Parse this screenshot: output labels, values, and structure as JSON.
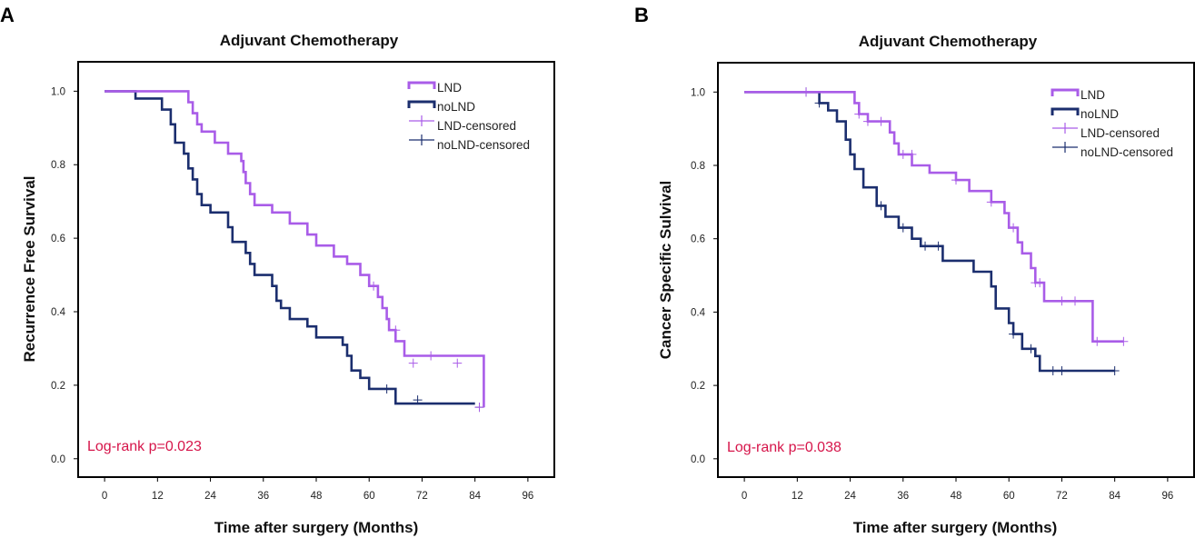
{
  "colors": {
    "LND": "#a95ce8",
    "noLND": "#1b2e6e",
    "annotation": "#d6154a"
  },
  "chart_data": [
    {
      "panel": "A",
      "type": "line",
      "subtype": "kaplan-meier",
      "title": "Adjuvant Chemotherapy",
      "xlabel": "Time after surgery (Months)",
      "ylabel": "Recurrence Free Survival",
      "xlim": [
        -6,
        102
      ],
      "ylim": [
        -0.05,
        1.08
      ],
      "xticks": [
        0,
        12,
        24,
        36,
        48,
        60,
        72,
        84,
        96
      ],
      "yticks": [
        0.0,
        0.2,
        0.4,
        0.6,
        0.8,
        1.0
      ],
      "ytick_labels": [
        "0.0",
        "0.2",
        "0.4",
        "0.6",
        "0.8",
        "1.0"
      ],
      "legend_position": "top-right",
      "legend": [
        "LND",
        "noLND",
        "LND-censored",
        "noLND-censored"
      ],
      "annotation": "Log-rank p=0.023",
      "series": [
        {
          "name": "LND",
          "steps": [
            [
              0,
              1.0
            ],
            [
              19,
              1.0
            ],
            [
              19,
              0.97
            ],
            [
              20,
              0.94
            ],
            [
              21,
              0.91
            ],
            [
              22,
              0.89
            ],
            [
              25,
              0.86
            ],
            [
              28,
              0.83
            ],
            [
              31,
              0.81
            ],
            [
              31.5,
              0.78
            ],
            [
              32,
              0.75
            ],
            [
              33,
              0.72
            ],
            [
              34,
              0.69
            ],
            [
              38,
              0.67
            ],
            [
              42,
              0.64
            ],
            [
              46,
              0.61
            ],
            [
              48,
              0.58
            ],
            [
              52,
              0.55
            ],
            [
              55,
              0.53
            ],
            [
              58,
              0.5
            ],
            [
              60,
              0.47
            ],
            [
              62,
              0.44
            ],
            [
              63,
              0.41
            ],
            [
              64,
              0.38
            ],
            [
              64.5,
              0.35
            ],
            [
              66,
              0.32
            ],
            [
              68,
              0.28
            ],
            [
              86,
              0.28
            ],
            [
              86,
              0.14
            ]
          ],
          "censored": [
            [
              61,
              0.47
            ],
            [
              66,
              0.35
            ],
            [
              70,
              0.26
            ],
            [
              74,
              0.28
            ],
            [
              80,
              0.26
            ],
            [
              85,
              0.14
            ]
          ]
        },
        {
          "name": "noLND",
          "steps": [
            [
              0,
              1.0
            ],
            [
              7,
              1.0
            ],
            [
              7,
              0.98
            ],
            [
              12,
              0.98
            ],
            [
              13,
              0.95
            ],
            [
              15,
              0.91
            ],
            [
              16,
              0.86
            ],
            [
              18,
              0.83
            ],
            [
              19,
              0.79
            ],
            [
              20,
              0.76
            ],
            [
              21,
              0.72
            ],
            [
              22,
              0.69
            ],
            [
              24,
              0.67
            ],
            [
              28,
              0.63
            ],
            [
              29,
              0.59
            ],
            [
              32,
              0.56
            ],
            [
              33,
              0.53
            ],
            [
              34,
              0.5
            ],
            [
              38,
              0.47
            ],
            [
              39,
              0.43
            ],
            [
              40,
              0.41
            ],
            [
              42,
              0.38
            ],
            [
              46,
              0.36
            ],
            [
              48,
              0.33
            ],
            [
              54,
              0.31
            ],
            [
              55,
              0.28
            ],
            [
              56,
              0.24
            ],
            [
              58,
              0.22
            ],
            [
              60,
              0.19
            ],
            [
              66,
              0.19
            ],
            [
              66,
              0.15
            ],
            [
              84,
              0.15
            ]
          ],
          "censored": [
            [
              64,
              0.19
            ],
            [
              71,
              0.16
            ],
            [
              85,
              0.14
            ]
          ]
        }
      ]
    },
    {
      "panel": "B",
      "type": "line",
      "subtype": "kaplan-meier",
      "title": "Adjuvant Chemotherapy",
      "xlabel": "Time after surgery (Months)",
      "ylabel": "Cancer Specific Sulvival",
      "xlim": [
        -6,
        102
      ],
      "ylim": [
        -0.05,
        1.08
      ],
      "xticks": [
        0,
        12,
        24,
        36,
        48,
        60,
        72,
        84,
        96
      ],
      "yticks": [
        0.0,
        0.2,
        0.4,
        0.6,
        0.8,
        1.0
      ],
      "ytick_labels": [
        "0.0",
        "0.2",
        "0.4",
        "0.6",
        "0.8",
        "1.0"
      ],
      "legend_position": "top-right",
      "legend": [
        "LND",
        "noLND",
        "LND-censored",
        "noLND-censored"
      ],
      "annotation": "Log-rank p=0.038",
      "series": [
        {
          "name": "LND",
          "steps": [
            [
              0,
              1.0
            ],
            [
              24,
              1.0
            ],
            [
              25,
              0.97
            ],
            [
              26,
              0.94
            ],
            [
              28,
              0.92
            ],
            [
              33,
              0.89
            ],
            [
              34,
              0.86
            ],
            [
              35,
              0.83
            ],
            [
              38,
              0.8
            ],
            [
              42,
              0.78
            ],
            [
              48,
              0.76
            ],
            [
              51,
              0.73
            ],
            [
              56,
              0.7
            ],
            [
              59,
              0.67
            ],
            [
              60,
              0.63
            ],
            [
              62,
              0.59
            ],
            [
              63,
              0.56
            ],
            [
              65,
              0.52
            ],
            [
              66,
              0.48
            ],
            [
              68,
              0.43
            ],
            [
              78,
              0.43
            ],
            [
              79,
              0.32
            ],
            [
              86,
              0.32
            ]
          ],
          "censored": [
            [
              14,
              1.0
            ],
            [
              26,
              0.94
            ],
            [
              28,
              0.92
            ],
            [
              31,
              0.92
            ],
            [
              36,
              0.83
            ],
            [
              38,
              0.83
            ],
            [
              48,
              0.76
            ],
            [
              56,
              0.7
            ],
            [
              61,
              0.63
            ],
            [
              66,
              0.48
            ],
            [
              67,
              0.48
            ],
            [
              72,
              0.43
            ],
            [
              75,
              0.43
            ],
            [
              80,
              0.32
            ],
            [
              86,
              0.32
            ]
          ]
        },
        {
          "name": "noLND",
          "steps": [
            [
              0,
              1.0
            ],
            [
              16,
              1.0
            ],
            [
              17,
              0.97
            ],
            [
              19,
              0.95
            ],
            [
              21,
              0.92
            ],
            [
              23,
              0.87
            ],
            [
              24,
              0.83
            ],
            [
              25,
              0.79
            ],
            [
              27,
              0.74
            ],
            [
              30,
              0.69
            ],
            [
              32,
              0.66
            ],
            [
              35,
              0.63
            ],
            [
              38,
              0.6
            ],
            [
              40,
              0.58
            ],
            [
              45,
              0.54
            ],
            [
              52,
              0.51
            ],
            [
              56,
              0.47
            ],
            [
              57,
              0.41
            ],
            [
              60,
              0.37
            ],
            [
              61,
              0.34
            ],
            [
              63,
              0.3
            ],
            [
              66,
              0.28
            ],
            [
              67,
              0.24
            ],
            [
              84,
              0.24
            ]
          ],
          "censored": [
            [
              14,
              1.0
            ],
            [
              17,
              0.97
            ],
            [
              31,
              0.69
            ],
            [
              36,
              0.63
            ],
            [
              41,
              0.58
            ],
            [
              44,
              0.58
            ],
            [
              61,
              0.34
            ],
            [
              65,
              0.3
            ],
            [
              70,
              0.24
            ],
            [
              72,
              0.24
            ],
            [
              84,
              0.24
            ]
          ]
        }
      ]
    }
  ]
}
